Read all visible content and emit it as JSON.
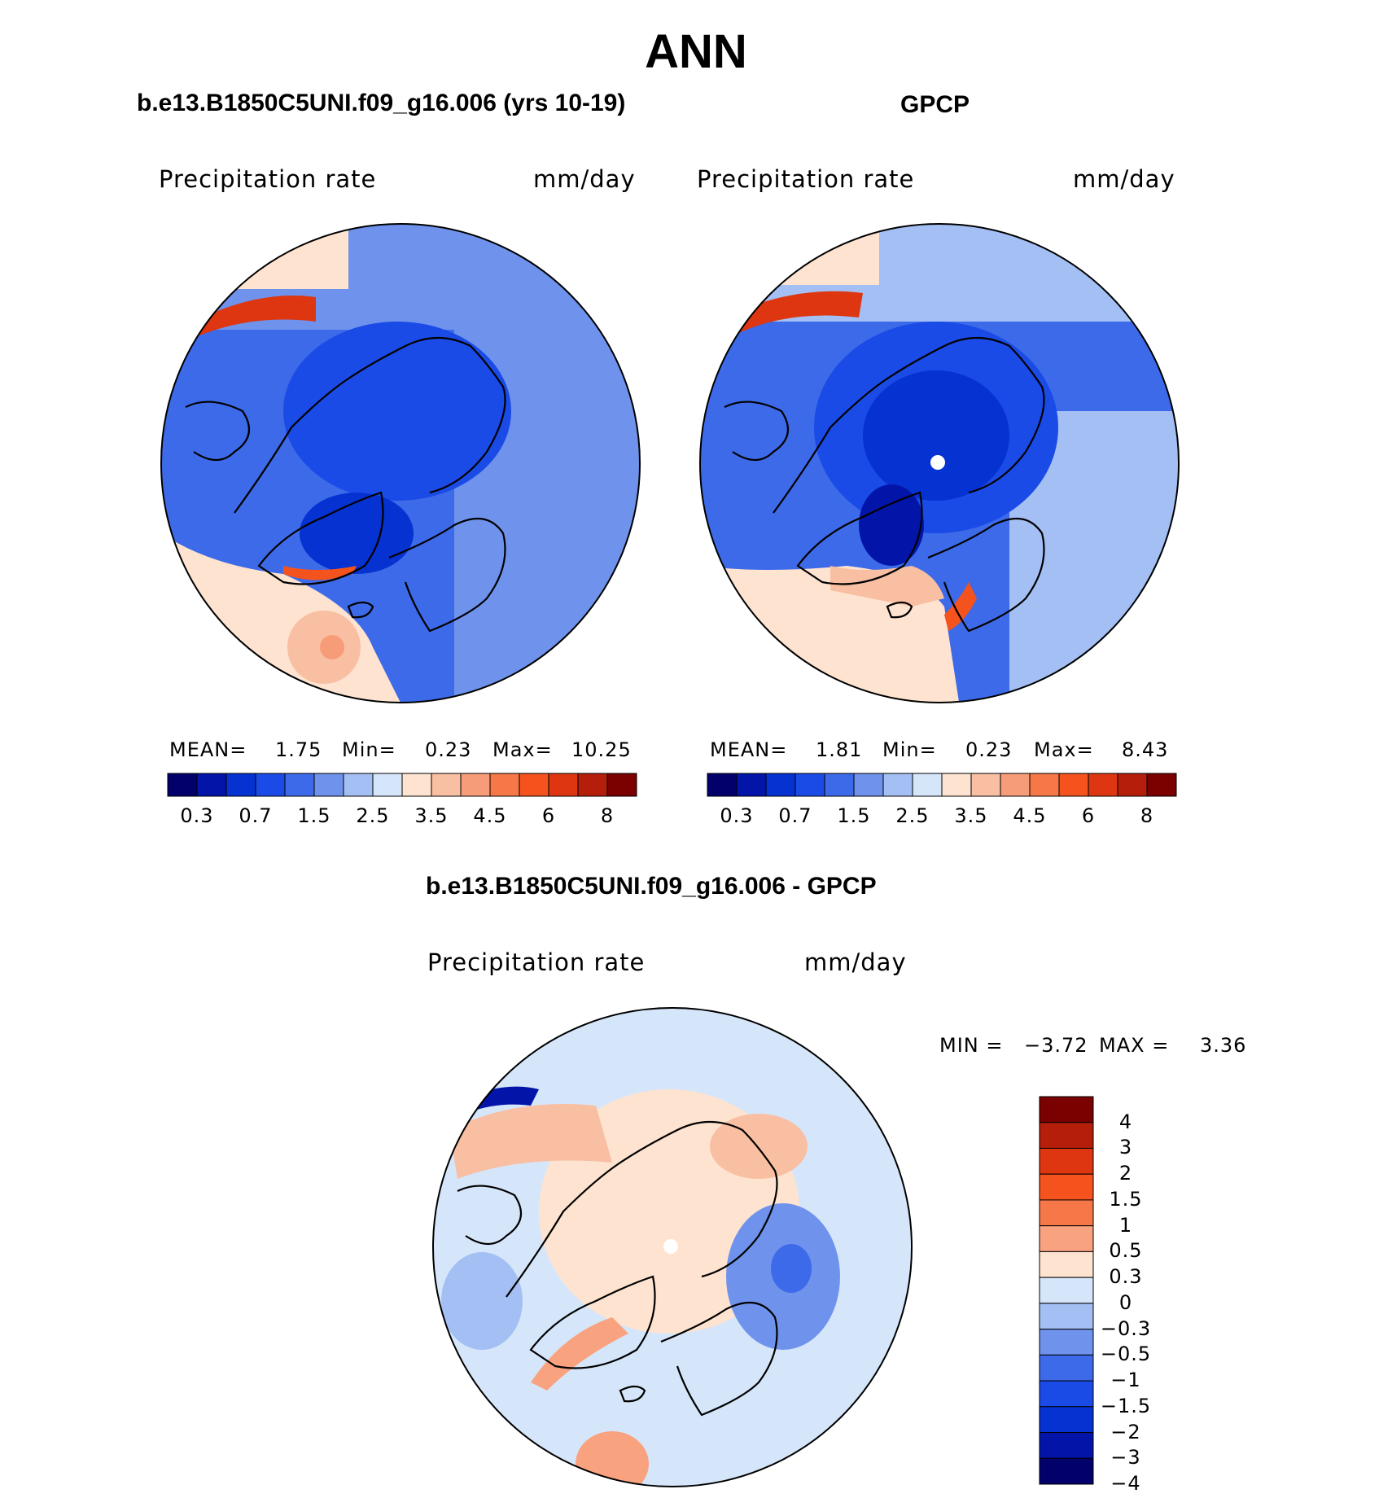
{
  "title": "ANN",
  "panels": {
    "model": {
      "title": "b.e13.B1850C5UNI.f09_g16.006 (yrs 10-19)",
      "variable": "Precipitation rate",
      "units": "mm/day",
      "stats": {
        "mean_label": "MEAN=",
        "mean": "1.75",
        "min_label": "Min=",
        "min": "0.23",
        "max_label": "Max=",
        "max": "10.25"
      }
    },
    "obs": {
      "title": "GPCP",
      "variable": "Precipitation rate",
      "units": "mm/day",
      "stats": {
        "mean_label": "MEAN=",
        "mean": "1.81",
        "min_label": "Min=",
        "min": "0.23",
        "max_label": "Max=",
        "max": "8.43"
      }
    },
    "diff": {
      "title": "b.e13.B1850C5UNI.f09_g16.006 - GPCP",
      "variable": "Precipitation rate",
      "units": "mm/day",
      "stats": {
        "min_label": "MIN =",
        "min": "−3.72",
        "max_label": "MAX =",
        "max": "3.36"
      }
    }
  },
  "colorbar_abs": {
    "colors": [
      "#02006b",
      "#0315a8",
      "#0532d0",
      "#1a4be6",
      "#3d6ae8",
      "#6f93ec",
      "#a3bff3",
      "#d6e6fa",
      "#fde3d0",
      "#f9bfa2",
      "#f79c78",
      "#f67747",
      "#f5531e",
      "#dd3610",
      "#b41e0a",
      "#7b0000"
    ],
    "labels": [
      "0.3",
      "0.7",
      "1.5",
      "2.5",
      "3.5",
      "4.5",
      "6",
      "8"
    ]
  },
  "colorbar_diff": {
    "colors": [
      "#7b0000",
      "#b41e0a",
      "#dd3610",
      "#f5531e",
      "#f67747",
      "#f9a27f",
      "#fde3d0",
      "#d6e6fa",
      "#a3bff3",
      "#6f93ec",
      "#3d6ae8",
      "#1a4be6",
      "#0532d0",
      "#0315a8",
      "#02006b"
    ],
    "labels": [
      "4",
      "3",
      "2",
      "1.5",
      "1",
      "0.5",
      "0.3",
      "0",
      "−0.3",
      "−0.5",
      "−1",
      "−1.5",
      "−2",
      "−3",
      "−4"
    ]
  }
}
